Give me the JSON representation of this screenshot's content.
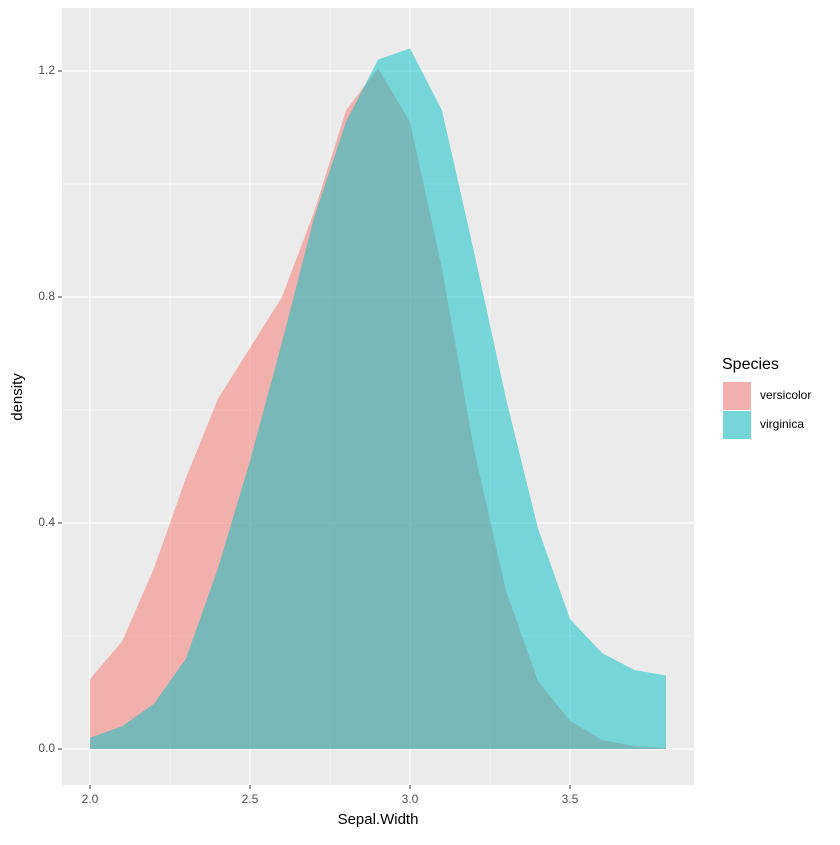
{
  "chart_data": {
    "type": "area",
    "x_label": "Sepal.Width",
    "y_label": "density",
    "legend_title": "Species",
    "x": [
      2.0,
      2.1,
      2.2,
      2.3,
      2.4,
      2.5,
      2.6,
      2.7,
      2.8,
      2.9,
      3.0,
      3.1,
      3.2,
      3.3,
      3.4,
      3.5,
      3.6,
      3.7,
      3.8
    ],
    "series": [
      {
        "name": "versicolor",
        "color": "#F8766D",
        "values": [
          0.124,
          0.19,
          0.32,
          0.48,
          0.62,
          0.71,
          0.8,
          0.95,
          1.13,
          1.205,
          1.11,
          0.85,
          0.53,
          0.28,
          0.12,
          0.05,
          0.016,
          0.005,
          0.002
        ]
      },
      {
        "name": "virginica",
        "color": "#00BFC4",
        "values": [
          0.02,
          0.04,
          0.08,
          0.16,
          0.32,
          0.51,
          0.72,
          0.94,
          1.11,
          1.22,
          1.24,
          1.13,
          0.88,
          0.62,
          0.39,
          0.23,
          0.17,
          0.14,
          0.13
        ]
      }
    ],
    "xlim": [
      1.9125,
      3.8875
    ],
    "xticks": [
      {
        "value": 2.0,
        "label": "2.0"
      },
      2.5,
      {
        "value": 3.0,
        "label": "3.0"
      },
      3.5
    ],
    "ylim": [
      -0.0637,
      1.3115
    ],
    "yticks": [
      {
        "value": 0.0,
        "label": "0.0"
      },
      0.4,
      0.8,
      1.2
    ],
    "grid": true,
    "legend": "right"
  }
}
